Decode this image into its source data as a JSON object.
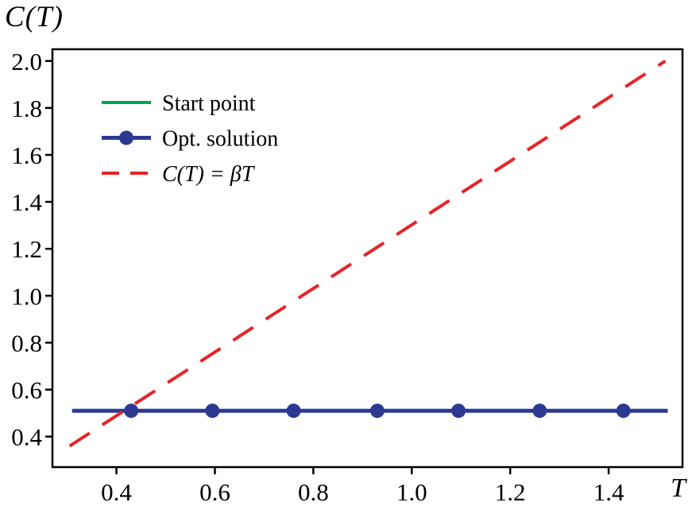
{
  "chart_data": {
    "type": "line",
    "title": "",
    "xlabel": "T",
    "ylabel": "C(T)",
    "xlim": [
      0.27,
      1.55
    ],
    "ylim": [
      0.27,
      2.05
    ],
    "xticks": [
      0.4,
      0.6,
      0.8,
      1.0,
      1.2,
      1.4
    ],
    "yticks": [
      0.4,
      0.6,
      0.8,
      1.0,
      1.2,
      1.4,
      1.6,
      1.8,
      2.0
    ],
    "tick_decimals": 1,
    "grid": false,
    "legend_position": "upper-left-inside",
    "axis_color": "#000000",
    "background": "#ffffff",
    "series": [
      {
        "name": "Start point",
        "color": "#00a651",
        "line_style": "solid",
        "line_width": 4,
        "points": [
          [
            0.31,
            0.51
          ],
          [
            1.52,
            0.51
          ]
        ]
      },
      {
        "name": "Opt. solution",
        "color": "#2b3a90",
        "line_style": "solid",
        "line_width": 5,
        "marker": "circle",
        "marker_radius": 9,
        "points": [
          [
            0.31,
            0.51
          ],
          [
            1.52,
            0.51
          ]
        ],
        "markers": [
          [
            0.43,
            0.51
          ],
          [
            0.595,
            0.51
          ],
          [
            0.76,
            0.51
          ],
          [
            0.93,
            0.51
          ],
          [
            1.095,
            0.51
          ],
          [
            1.26,
            0.51
          ],
          [
            1.43,
            0.51
          ]
        ]
      },
      {
        "name": "C(T) = βT",
        "label_italic": true,
        "color": "#e52528",
        "line_style": "dashed",
        "line_width": 4,
        "points": [
          [
            0.305,
            0.36
          ],
          [
            1.515,
            2.0
          ]
        ]
      }
    ]
  }
}
